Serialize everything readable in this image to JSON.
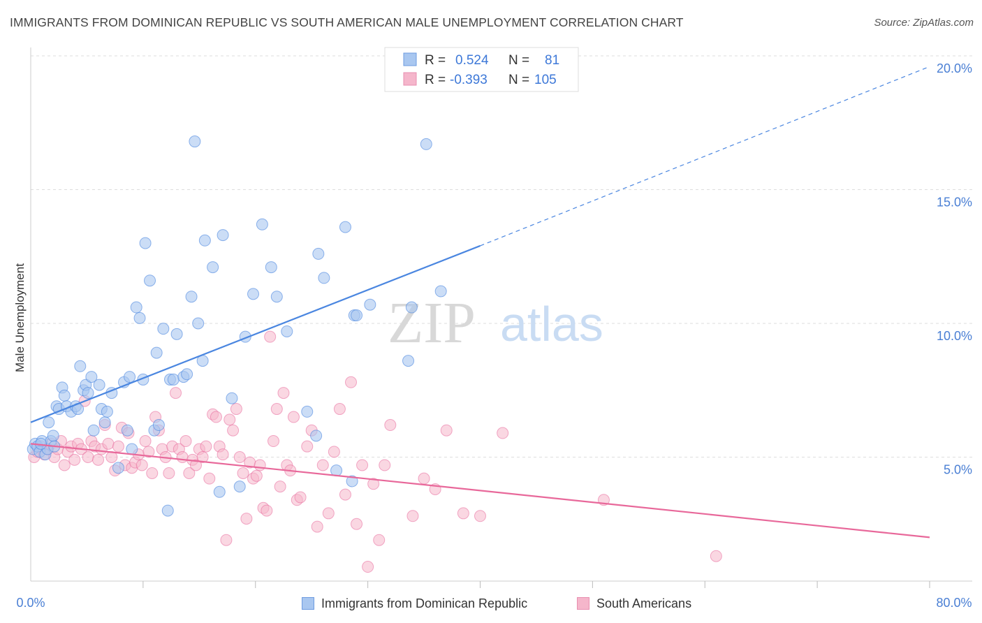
{
  "title": "IMMIGRANTS FROM DOMINICAN REPUBLIC VS SOUTH AMERICAN MALE UNEMPLOYMENT CORRELATION CHART",
  "source": "Source: ZipAtlas.com",
  "watermark": {
    "part1": "ZIP",
    "part2": "atlas"
  },
  "colors": {
    "blue": "#4a86e0",
    "blue_fill": "#a9c7f0",
    "pink": "#e8689a",
    "pink_fill": "#f5b6cb",
    "tick": "#4a7fd4",
    "grid": "#dddddd"
  },
  "legend_stats": [
    {
      "r_label": "R =",
      "r_value": "0.524",
      "n_label": "N =",
      "n_value": "81"
    },
    {
      "r_label": "R =",
      "r_value": "-0.393",
      "n_label": "N =",
      "n_value": "105"
    }
  ],
  "bottom_legend": [
    "Immigrants from Dominican Republic",
    "South Americans"
  ],
  "chart_data": {
    "type": "scatter",
    "title": "IMMIGRANTS FROM DOMINICAN REPUBLIC VS SOUTH AMERICAN MALE UNEMPLOYMENT CORRELATION CHART",
    "xlabel": "",
    "ylabel": "Male Unemployment",
    "xlim": [
      0,
      80
    ],
    "ylim": [
      0,
      20
    ],
    "x_tick_labels": [
      "0.0%",
      "80.0%"
    ],
    "y_ticks": [
      5,
      10,
      15,
      20
    ],
    "y_tick_labels": [
      "5.0%",
      "10.0%",
      "15.0%",
      "20.0%"
    ],
    "grid": true,
    "legend_position": "top-center",
    "series": [
      {
        "name": "Immigrants from Dominican Republic",
        "color": "#4a86e0",
        "r": 0.524,
        "n": 81,
        "trend": {
          "x0": 0,
          "y0": 6.3,
          "x1": 40,
          "y1": 12.9,
          "dashed_to": [
            80,
            19.6
          ]
        },
        "points": [
          [
            0.2,
            5.3
          ],
          [
            0.4,
            5.5
          ],
          [
            0.6,
            5.4
          ],
          [
            0.8,
            5.2
          ],
          [
            1.0,
            5.6
          ],
          [
            1.3,
            5.1
          ],
          [
            1.5,
            5.3
          ],
          [
            1.6,
            6.3
          ],
          [
            1.8,
            5.6
          ],
          [
            2.0,
            5.8
          ],
          [
            2.3,
            6.9
          ],
          [
            2.5,
            6.8
          ],
          [
            2.8,
            7.6
          ],
          [
            3.0,
            7.3
          ],
          [
            3.2,
            6.9
          ],
          [
            3.6,
            6.7
          ],
          [
            4.0,
            6.9
          ],
          [
            4.2,
            6.8
          ],
          [
            4.4,
            8.4
          ],
          [
            4.7,
            7.5
          ],
          [
            4.9,
            7.7
          ],
          [
            5.1,
            7.4
          ],
          [
            5.4,
            8.0
          ],
          [
            5.6,
            6.0
          ],
          [
            6.1,
            7.7
          ],
          [
            6.3,
            6.8
          ],
          [
            6.6,
            6.3
          ],
          [
            6.8,
            6.7
          ],
          [
            7.2,
            7.4
          ],
          [
            7.8,
            4.6
          ],
          [
            8.3,
            7.8
          ],
          [
            8.6,
            6.0
          ],
          [
            8.8,
            8.0
          ],
          [
            9.0,
            5.3
          ],
          [
            9.4,
            10.6
          ],
          [
            9.7,
            10.2
          ],
          [
            10.0,
            7.9
          ],
          [
            10.2,
            13.0
          ],
          [
            10.6,
            11.6
          ],
          [
            11.2,
            8.9
          ],
          [
            11.0,
            6.0
          ],
          [
            11.4,
            6.2
          ],
          [
            11.8,
            9.8
          ],
          [
            12.2,
            3.0
          ],
          [
            12.4,
            7.9
          ],
          [
            12.7,
            7.9
          ],
          [
            13.0,
            9.6
          ],
          [
            13.6,
            8.0
          ],
          [
            13.9,
            8.1
          ],
          [
            14.3,
            11.0
          ],
          [
            14.6,
            16.8
          ],
          [
            14.9,
            10.0
          ],
          [
            15.3,
            8.6
          ],
          [
            15.5,
            13.1
          ],
          [
            16.2,
            12.1
          ],
          [
            16.8,
            3.7
          ],
          [
            17.1,
            13.3
          ],
          [
            17.9,
            7.2
          ],
          [
            18.6,
            3.9
          ],
          [
            19.1,
            9.5
          ],
          [
            19.8,
            11.1
          ],
          [
            20.6,
            13.7
          ],
          [
            21.4,
            12.1
          ],
          [
            21.9,
            11.0
          ],
          [
            22.8,
            9.7
          ],
          [
            24.6,
            6.7
          ],
          [
            25.4,
            5.8
          ],
          [
            25.6,
            12.6
          ],
          [
            26.1,
            11.7
          ],
          [
            27.2,
            4.5
          ],
          [
            28.0,
            13.6
          ],
          [
            28.6,
            4.1
          ],
          [
            28.8,
            10.3
          ],
          [
            29.0,
            10.3
          ],
          [
            30.2,
            10.7
          ],
          [
            33.6,
            8.6
          ],
          [
            33.9,
            10.6
          ],
          [
            35.2,
            16.7
          ],
          [
            36.5,
            11.2
          ],
          [
            0.9,
            5.5
          ],
          [
            2.1,
            5.4
          ]
        ]
      },
      {
        "name": "South Americans",
        "color": "#e8689a",
        "r": -0.393,
        "n": 105,
        "trend": {
          "x0": 0,
          "y0": 5.5,
          "x1": 80,
          "y1": 2.0
        },
        "points": [
          [
            0.3,
            5.0
          ],
          [
            0.6,
            5.2
          ],
          [
            0.9,
            5.4
          ],
          [
            1.2,
            5.1
          ],
          [
            1.5,
            5.3
          ],
          [
            1.8,
            5.5
          ],
          [
            2.1,
            5.0
          ],
          [
            2.4,
            5.3
          ],
          [
            2.7,
            5.6
          ],
          [
            3.0,
            4.7
          ],
          [
            3.3,
            5.2
          ],
          [
            3.6,
            5.4
          ],
          [
            3.9,
            4.9
          ],
          [
            4.2,
            5.5
          ],
          [
            4.5,
            5.3
          ],
          [
            4.8,
            7.1
          ],
          [
            5.1,
            5.0
          ],
          [
            5.4,
            5.6
          ],
          [
            5.7,
            5.4
          ],
          [
            6.0,
            4.9
          ],
          [
            6.3,
            5.3
          ],
          [
            6.6,
            6.2
          ],
          [
            6.9,
            5.5
          ],
          [
            7.2,
            5.0
          ],
          [
            7.5,
            4.5
          ],
          [
            7.8,
            5.4
          ],
          [
            8.1,
            6.1
          ],
          [
            8.4,
            4.7
          ],
          [
            8.7,
            5.9
          ],
          [
            9.0,
            4.6
          ],
          [
            9.3,
            4.8
          ],
          [
            9.6,
            5.1
          ],
          [
            9.9,
            4.7
          ],
          [
            10.2,
            5.6
          ],
          [
            10.5,
            5.2
          ],
          [
            10.8,
            4.4
          ],
          [
            11.1,
            6.5
          ],
          [
            11.4,
            6.0
          ],
          [
            11.7,
            5.3
          ],
          [
            12.0,
            5.0
          ],
          [
            12.3,
            4.4
          ],
          [
            12.6,
            5.4
          ],
          [
            12.9,
            7.4
          ],
          [
            13.2,
            5.3
          ],
          [
            13.5,
            5.0
          ],
          [
            13.8,
            5.6
          ],
          [
            14.1,
            4.4
          ],
          [
            14.4,
            4.9
          ],
          [
            14.7,
            4.7
          ],
          [
            15.0,
            5.3
          ],
          [
            15.3,
            5.0
          ],
          [
            15.6,
            5.4
          ],
          [
            15.9,
            4.2
          ],
          [
            16.2,
            6.6
          ],
          [
            16.5,
            6.5
          ],
          [
            16.8,
            5.4
          ],
          [
            17.1,
            5.1
          ],
          [
            17.4,
            1.9
          ],
          [
            17.7,
            6.4
          ],
          [
            18.0,
            6.0
          ],
          [
            18.3,
            6.8
          ],
          [
            18.6,
            5.0
          ],
          [
            18.9,
            4.4
          ],
          [
            19.2,
            2.7
          ],
          [
            19.5,
            4.8
          ],
          [
            19.8,
            4.2
          ],
          [
            20.1,
            4.3
          ],
          [
            20.4,
            4.7
          ],
          [
            20.7,
            3.1
          ],
          [
            21.0,
            3.0
          ],
          [
            21.3,
            9.5
          ],
          [
            21.6,
            5.6
          ],
          [
            21.9,
            6.8
          ],
          [
            22.2,
            3.9
          ],
          [
            22.5,
            7.4
          ],
          [
            22.8,
            4.7
          ],
          [
            23.1,
            4.5
          ],
          [
            23.4,
            6.5
          ],
          [
            23.7,
            3.4
          ],
          [
            24.0,
            3.5
          ],
          [
            24.6,
            5.4
          ],
          [
            25.0,
            6.0
          ],
          [
            25.5,
            2.4
          ],
          [
            26.0,
            4.7
          ],
          [
            26.5,
            2.9
          ],
          [
            27.0,
            5.2
          ],
          [
            27.5,
            6.8
          ],
          [
            28.0,
            3.6
          ],
          [
            28.5,
            7.8
          ],
          [
            29.0,
            2.5
          ],
          [
            29.5,
            4.7
          ],
          [
            30.0,
            0.9
          ],
          [
            30.5,
            4.0
          ],
          [
            31.0,
            1.9
          ],
          [
            31.5,
            4.7
          ],
          [
            32.0,
            6.2
          ],
          [
            34.0,
            2.8
          ],
          [
            35.0,
            4.2
          ],
          [
            36.0,
            3.8
          ],
          [
            37.0,
            6.0
          ],
          [
            38.5,
            2.9
          ],
          [
            40.0,
            2.8
          ],
          [
            42.0,
            5.9
          ],
          [
            51.0,
            3.4
          ],
          [
            61.0,
            1.3
          ]
        ]
      }
    ]
  }
}
